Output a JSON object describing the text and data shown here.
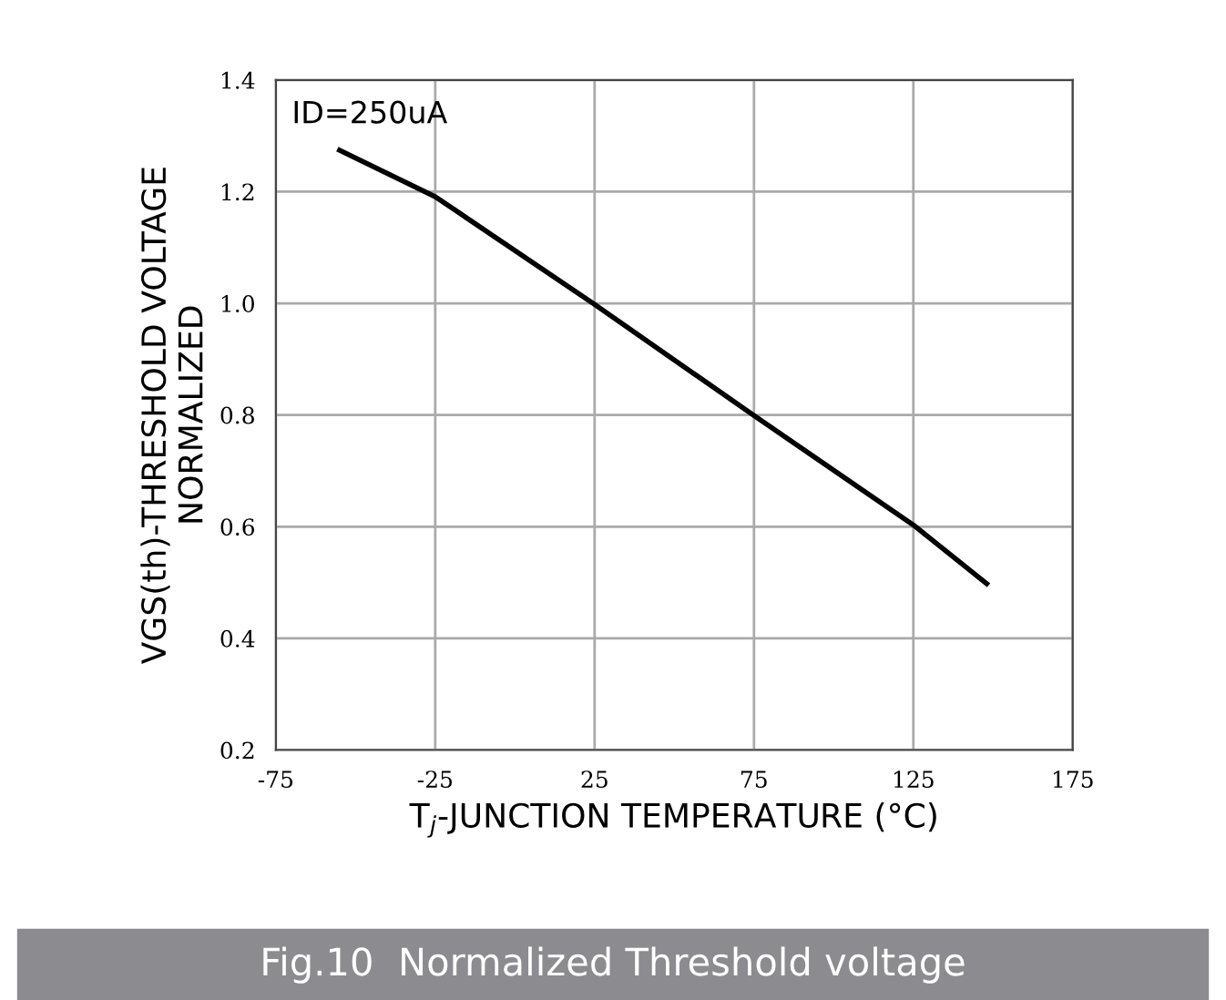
{
  "chart_data": {
    "type": "line",
    "xlabel": "T$_{j}$-JUNCTION TEMPERATURE (°C)",
    "ylabel": "VGS(th)-THRESHOLD VOLTAGE\nNORMALIZED",
    "annotations": [
      "ID=250uA",
      "Fig.10  Normalized Threshold voltage"
    ],
    "x": [
      -55,
      -25,
      25,
      75,
      125,
      148
    ],
    "series": [
      {
        "color": "#000000",
        "values": [
          1.274,
          1.191,
          0.998,
          0.799,
          0.603,
          0.498
        ]
      }
    ],
    "xlim": [
      -75,
      175
    ],
    "xticks": [
      -75,
      -25,
      25,
      75,
      125,
      175
    ],
    "ylim": [
      0.2,
      1.4
    ],
    "yticks": [
      0.2,
      0.4,
      0.6,
      0.8,
      {
        "value": 1,
        "label": "1.0"
      },
      1.2,
      1.4
    ],
    "grid": true,
    "legend": false,
    "marker": "none",
    "line_style": "solid"
  }
}
